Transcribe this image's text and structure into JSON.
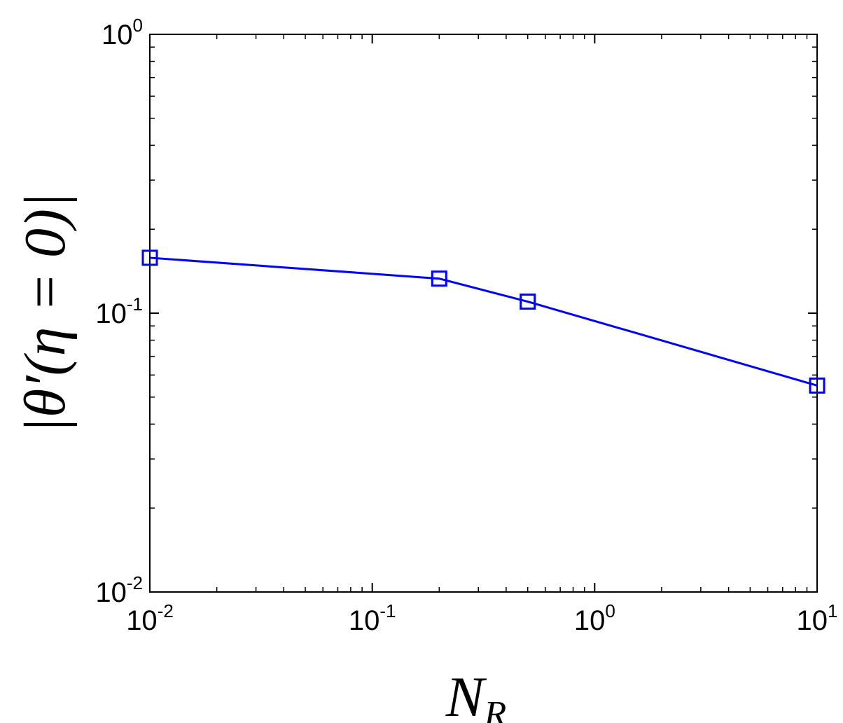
{
  "chart_data": {
    "type": "line",
    "title": "",
    "xlabel": {
      "base": "N",
      "sub": "R"
    },
    "ylabel": "|θ′(η = 0)|",
    "xscale": "log",
    "yscale": "log",
    "xlim": [
      0.01,
      10
    ],
    "ylim": [
      0.01,
      1
    ],
    "grid": false,
    "legend": "none",
    "xticks": [
      {
        "value": 0.01,
        "base": "10",
        "exp": "-2"
      },
      {
        "value": 0.1,
        "base": "10",
        "exp": "-1"
      },
      {
        "value": 1,
        "base": "10",
        "exp": "0"
      },
      {
        "value": 10,
        "base": "10",
        "exp": "1"
      }
    ],
    "yticks": [
      {
        "value": 0.01,
        "base": "10",
        "exp": "-2"
      },
      {
        "value": 0.1,
        "base": "10",
        "exp": "-1"
      },
      {
        "value": 1,
        "base": "10",
        "exp": "0"
      }
    ],
    "series": [
      {
        "color": "#0000ff",
        "marker": "square",
        "x": [
          0.01,
          0.2,
          0.5,
          10
        ],
        "y": [
          0.158,
          0.133,
          0.11,
          0.055
        ]
      }
    ]
  }
}
